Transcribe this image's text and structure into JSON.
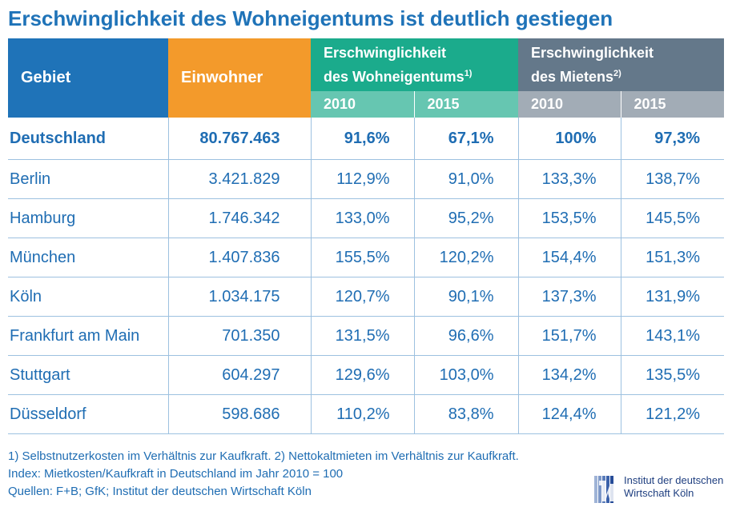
{
  "title": "Erschwinglichkeit des Wohneigentums ist deutlich gestiegen",
  "chart_data": {
    "type": "table",
    "columns": {
      "gebiet": "Gebiet",
      "einwohner": "Einwohner",
      "ownership_line1": "Erschwinglichkeit",
      "ownership_line2": "des Wohneigentums",
      "ownership_note": "1)",
      "rent_line1": "Erschwinglichkeit",
      "rent_line2": "des Mietens",
      "rent_note": "2)",
      "years": [
        "2010",
        "2015",
        "2010",
        "2015"
      ]
    },
    "rows": [
      {
        "name": "Deutschland",
        "einwohner": "80.767.463",
        "own_2010": "91,6%",
        "own_2015": "67,1%",
        "rent_2010": "100%",
        "rent_2015": "97,3%"
      },
      {
        "name": "Berlin",
        "einwohner": "3.421.829",
        "own_2010": "112,9%",
        "own_2015": "91,0%",
        "rent_2010": "133,3%",
        "rent_2015": "138,7%"
      },
      {
        "name": "Hamburg",
        "einwohner": "1.746.342",
        "own_2010": "133,0%",
        "own_2015": "95,2%",
        "rent_2010": "153,5%",
        "rent_2015": "145,5%"
      },
      {
        "name": "München",
        "einwohner": "1.407.836",
        "own_2010": "155,5%",
        "own_2015": "120,2%",
        "rent_2010": "154,4%",
        "rent_2015": "151,3%"
      },
      {
        "name": "Köln",
        "einwohner": "1.034.175",
        "own_2010": "120,7%",
        "own_2015": "90,1%",
        "rent_2010": "137,3%",
        "rent_2015": "131,9%"
      },
      {
        "name": "Frankfurt am Main",
        "einwohner": "701.350",
        "own_2010": "131,5%",
        "own_2015": "96,6%",
        "rent_2010": "151,7%",
        "rent_2015": "143,1%"
      },
      {
        "name": "Stuttgart",
        "einwohner": "604.297",
        "own_2010": "129,6%",
        "own_2015": "103,0%",
        "rent_2010": "134,2%",
        "rent_2015": "135,5%"
      },
      {
        "name": "Düsseldorf",
        "einwohner": "598.686",
        "own_2010": "110,2%",
        "own_2015": "83,8%",
        "rent_2010": "124,4%",
        "rent_2015": "121,2%"
      }
    ]
  },
  "footnotes": [
    "1) Selbstnutzerkosten im Verhältnis zur Kaufkraft. 2) Nettokaltmieten im Verhältnis zur Kaufkraft.",
    "Index: Mietkosten/Kaufkraft in Deutschland im Jahr 2010 = 100",
    "Quellen: F+B; GfK; Institut der deutschen Wirtschaft Köln"
  ],
  "logo": {
    "line1": "Institut der deutschen",
    "line2": "Wirtschaft Köln",
    "icon": "iw-logo-icon"
  },
  "colors": {
    "title": "#1f73b8",
    "gebiet_header": "#1f73b8",
    "einwohner_header": "#f39a2b",
    "ownership_header": "#1bab8c",
    "ownership_years": "#66c6b1",
    "rent_header": "#64788a",
    "rent_years": "#a2acb6",
    "text": "#1f6db3"
  }
}
